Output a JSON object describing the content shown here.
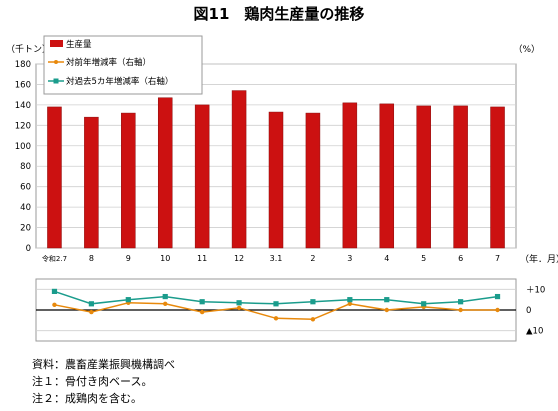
{
  "title": "図11　鶏肉生産量の推移",
  "chart_data": {
    "type": "bar+line",
    "categories": [
      "令和2.7",
      "8",
      "9",
      "10",
      "11",
      "12",
      "3.1",
      "2",
      "3",
      "4",
      "5",
      "6",
      "7"
    ],
    "bar_series": {
      "name": "生産量",
      "color": "#cc1111",
      "values": [
        138,
        128,
        132,
        147,
        140,
        154,
        133,
        132,
        142,
        141,
        139,
        139,
        138
      ]
    },
    "line_series": [
      {
        "name": "対前年増減率（右軸）",
        "color": "#e8890c",
        "values": [
          2.5,
          -1,
          3.5,
          3,
          -1,
          1,
          -4,
          -4.5,
          3,
          0,
          1.5,
          0,
          0
        ]
      },
      {
        "name": "対過去5カ年増減率（右軸）",
        "color": "#1a9c8c",
        "values": [
          9,
          3,
          5,
          6.5,
          4,
          3.5,
          3,
          4,
          5,
          5,
          3,
          4,
          6.5
        ]
      }
    ],
    "left_axis": {
      "unit": "（千トン）",
      "ylim": [
        0,
        180
      ],
      "ticks": [
        "0",
        "20",
        "40",
        "60",
        "80",
        "100",
        "120",
        "140",
        "160",
        "180"
      ]
    },
    "right_axis": {
      "unit": "（%）",
      "ylim": [
        -15,
        15
      ],
      "ticks": [
        {
          "value": 10,
          "label": "＋10"
        },
        {
          "value": 0,
          "label": "0"
        },
        {
          "value": -10,
          "label": "▲10"
        }
      ]
    },
    "x_unit": "（年．月）",
    "grid": true,
    "legend": "top-left"
  },
  "notes": [
    "資料：農畜産業振興機構調べ",
    "注１：骨付き肉ベース。",
    "注２：成鶏肉を含む。"
  ]
}
